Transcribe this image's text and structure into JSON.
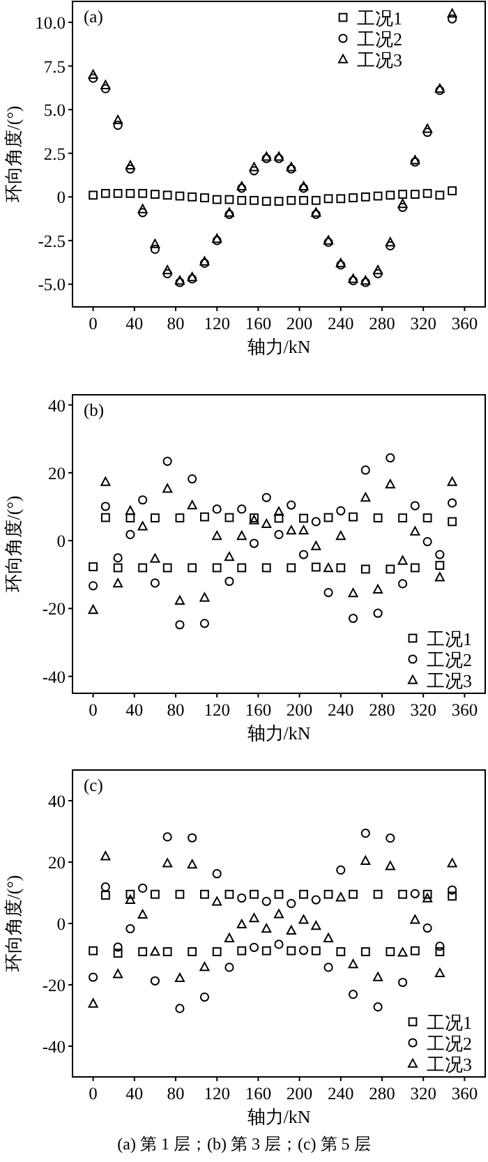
{
  "chart_data": [
    {
      "type": "scatter",
      "title": "(a)",
      "xlabel": "轴力/kN",
      "ylabel": "环向角度/(°)",
      "x": [
        0,
        12,
        24,
        36,
        48,
        60,
        72,
        84,
        96,
        108,
        120,
        132,
        144,
        156,
        168,
        180,
        192,
        204,
        216,
        228,
        240,
        252,
        264,
        276,
        288,
        300,
        312,
        324,
        336,
        348
      ],
      "xlim": [
        -20,
        380
      ],
      "xticks": [
        0,
        40,
        80,
        120,
        160,
        200,
        240,
        280,
        320,
        360
      ],
      "ylim": [
        -6.3,
        11.2
      ],
      "yticks": [
        {
          "value": -5,
          "label": "-5.0"
        },
        -2.5,
        0,
        2.5,
        {
          "value": 5,
          "label": "5.0"
        },
        7.5,
        {
          "value": 10,
          "label": "10.0"
        }
      ],
      "grid": false,
      "legend": "top right",
      "series": [
        {
          "name": "工况1",
          "color": "#000000",
          "marker": "square",
          "values": [
            0.1,
            0.2,
            0.2,
            0.2,
            0.2,
            0.15,
            0.1,
            0.05,
            0,
            -0.05,
            -0.15,
            -0.15,
            -0.2,
            -0.2,
            -0.25,
            -0.25,
            -0.2,
            -0.2,
            -0.2,
            -0.1,
            -0.1,
            -0.05,
            0,
            0.05,
            0.1,
            0.15,
            0.15,
            0.2,
            0.1,
            0.35
          ]
        },
        {
          "name": "工况2",
          "color": "#000000",
          "marker": "circle",
          "values": [
            6.8,
            6.2,
            4.1,
            1.6,
            -0.9,
            -3.0,
            -4.4,
            -4.9,
            -4.7,
            -3.8,
            -2.5,
            -1.0,
            0.5,
            1.5,
            2.2,
            2.2,
            1.6,
            0.5,
            -1.0,
            -2.6,
            -3.9,
            -4.8,
            -4.9,
            -4.4,
            -2.8,
            -0.6,
            2.0,
            3.7,
            6.1,
            10.2
          ]
        },
        {
          "name": "工况3",
          "color": "#000000",
          "marker": "triangle",
          "values": [
            7.0,
            6.4,
            4.4,
            1.8,
            -0.7,
            -2.7,
            -4.2,
            -4.8,
            -4.6,
            -3.7,
            -2.4,
            -0.9,
            0.6,
            1.7,
            2.3,
            2.3,
            1.7,
            0.6,
            -0.9,
            -2.5,
            -3.8,
            -4.7,
            -4.8,
            -4.2,
            -2.6,
            -0.4,
            2.1,
            3.9,
            6.2,
            10.5
          ]
        }
      ]
    },
    {
      "type": "scatter",
      "title": "(b)",
      "xlabel": "轴力/kN",
      "ylabel": "环向角度/(°)",
      "x": [
        0,
        12,
        24,
        36,
        48,
        60,
        72,
        84,
        96,
        108,
        120,
        132,
        144,
        156,
        168,
        180,
        192,
        204,
        216,
        228,
        240,
        252,
        264,
        276,
        288,
        300,
        312,
        324,
        336,
        348
      ],
      "xlim": [
        -20,
        380
      ],
      "xticks": [
        0,
        40,
        80,
        120,
        160,
        200,
        240,
        280,
        320,
        360
      ],
      "ylim": [
        -45,
        43
      ],
      "yticks": [
        -40,
        -20,
        0,
        20,
        40
      ],
      "grid": false,
      "legend": "bottom right",
      "series": [
        {
          "name": "工况1",
          "color": "#000000",
          "marker": "square",
          "values": [
            -7.7,
            6.8,
            -8,
            6.7,
            -8,
            6.7,
            -8,
            6.7,
            -8,
            7,
            -8,
            6.8,
            -8,
            6.7,
            -8,
            6.6,
            -8,
            6.6,
            -7.8,
            6.8,
            -8,
            7,
            -8.4,
            6.7,
            -8.4,
            6.7,
            -8,
            6.7,
            -7.3,
            5.6
          ]
        },
        {
          "name": "工况2",
          "color": "#000000",
          "marker": "circle",
          "values": [
            -13.3,
            10.1,
            -5.1,
            1.8,
            12,
            -12.5,
            23.4,
            -24.8,
            18.2,
            -24.4,
            9.3,
            -12,
            9.3,
            -0.8,
            12.7,
            1.8,
            10.5,
            -4.1,
            5.6,
            -15.3,
            8.8,
            -22.9,
            20.8,
            -21.4,
            24.4,
            -12.7,
            10.3,
            -0.3,
            -4.1,
            11.1
          ]
        },
        {
          "name": "工况3",
          "color": "#000000",
          "marker": "triangle",
          "values": [
            -20.4,
            17.3,
            -12.6,
            8.8,
            4.2,
            -5.3,
            15.3,
            -17.7,
            10.4,
            -16.8,
            1.4,
            -4.8,
            1.4,
            6,
            4.9,
            8.5,
            3,
            3,
            -1.6,
            -8.1,
            1.4,
            -15.5,
            12.7,
            -14.4,
            16.6,
            -5.9,
            2.7,
            null,
            -10.8,
            17.3
          ]
        }
      ]
    },
    {
      "type": "scatter",
      "title": "(c)",
      "xlabel": "轴力/kN",
      "ylabel": "环向角度/(°)",
      "annotations": [
        "(a) 第 1 层；(b) 第 3 层；(c) 第 5 层"
      ],
      "x": [
        0,
        12,
        24,
        36,
        48,
        60,
        72,
        84,
        96,
        108,
        120,
        132,
        144,
        156,
        168,
        180,
        192,
        204,
        216,
        228,
        240,
        252,
        264,
        276,
        288,
        300,
        312,
        324,
        336,
        348
      ],
      "xlim": [
        -20,
        380
      ],
      "xticks": [
        0,
        40,
        80,
        120,
        160,
        200,
        240,
        280,
        320,
        360
      ],
      "ylim": [
        -50,
        50
      ],
      "yticks": [
        -40,
        -20,
        0,
        20,
        40
      ],
      "grid": false,
      "legend": "bottom right",
      "series": [
        {
          "name": "工况1",
          "color": "#000000",
          "marker": "square",
          "values": [
            -8.9,
            9.2,
            -9.7,
            9.5,
            -9.2,
            9.5,
            -9.2,
            9.5,
            -9.2,
            9.5,
            -9.2,
            9.5,
            -8.9,
            9.5,
            -8.9,
            9.5,
            -8.9,
            9.5,
            -8.9,
            9.5,
            -9.2,
            9.5,
            -9.2,
            9.5,
            -9.2,
            9.5,
            -8.9,
            9.5,
            -9.2,
            8.9
          ]
        },
        {
          "name": "工况2",
          "color": "#000000",
          "marker": "circle",
          "values": [
            -17.5,
            11.9,
            -7.7,
            -1.7,
            11.5,
            -18.7,
            28.2,
            -27.7,
            27.9,
            -24,
            16.2,
            -14.3,
            8.3,
            -7.8,
            7.2,
            -6.8,
            6.5,
            -8.8,
            7.7,
            -14.3,
            17.4,
            -23.1,
            29.4,
            -27.2,
            27.8,
            -19.2,
            9.7,
            -1.5,
            -7.4,
            10.9
          ]
        },
        {
          "name": "工况3",
          "color": "#000000",
          "marker": "triangle",
          "values": [
            -26.1,
            21.9,
            -16.5,
            7.7,
            2.9,
            -9.2,
            19.6,
            -17.8,
            19.2,
            -14.2,
            7.1,
            -4.8,
            -0.3,
            1.7,
            -1.7,
            3,
            -2.3,
            1.2,
            -0.8,
            -4.8,
            8.5,
            -13.3,
            20.4,
            -17.5,
            18.7,
            -9.5,
            1.2,
            8.2,
            -16.2,
            19.6
          ]
        }
      ]
    }
  ]
}
